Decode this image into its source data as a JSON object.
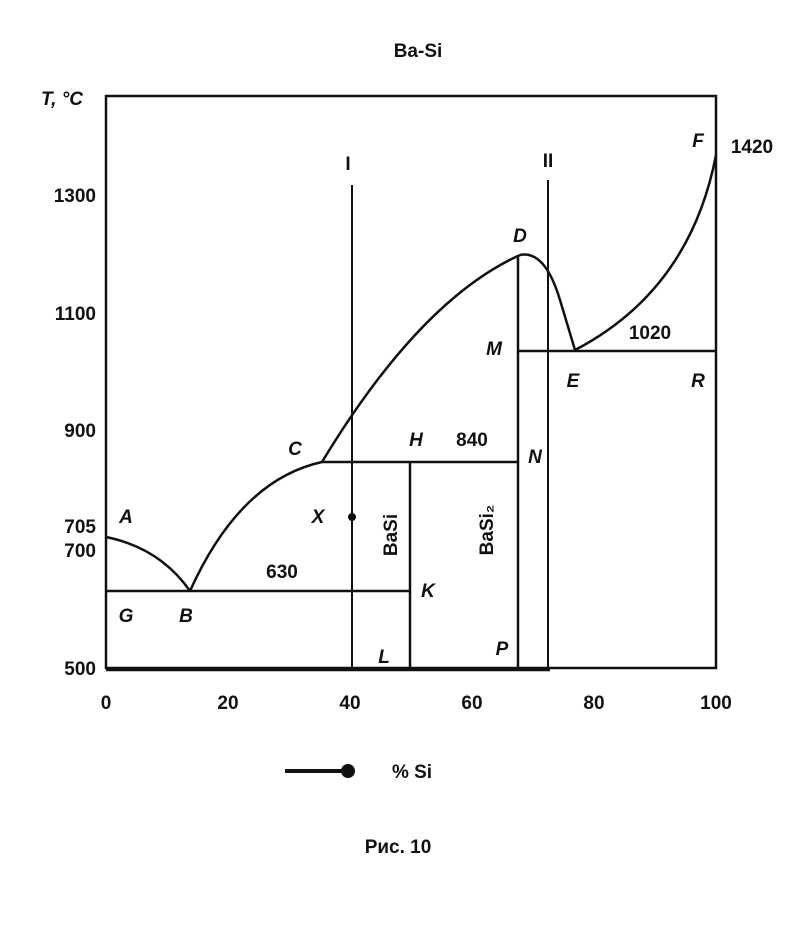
{
  "title": "Ba-Si",
  "y_axis_label": "T, °C",
  "y_ticks": [
    "1300",
    "1100",
    "900",
    "705",
    "700",
    "500"
  ],
  "x_ticks": [
    "0",
    "20",
    "40",
    "60",
    "80",
    "100"
  ],
  "x_axis_label": "% Si",
  "caption": "Рис. 10",
  "points": {
    "A": "A",
    "B": "B",
    "C": "C",
    "D": "D",
    "E": "E",
    "F": "F",
    "G": "G",
    "H": "H",
    "K": "K",
    "M": "M",
    "N": "N",
    "R": "R",
    "X": "X",
    "L": "L",
    "P": "P"
  },
  "temperatures": [
    "630",
    "840",
    "1020",
    "1420"
  ],
  "compounds": [
    "BaSi",
    "BaSi₂"
  ],
  "sections": [
    "I",
    "II"
  ]
}
